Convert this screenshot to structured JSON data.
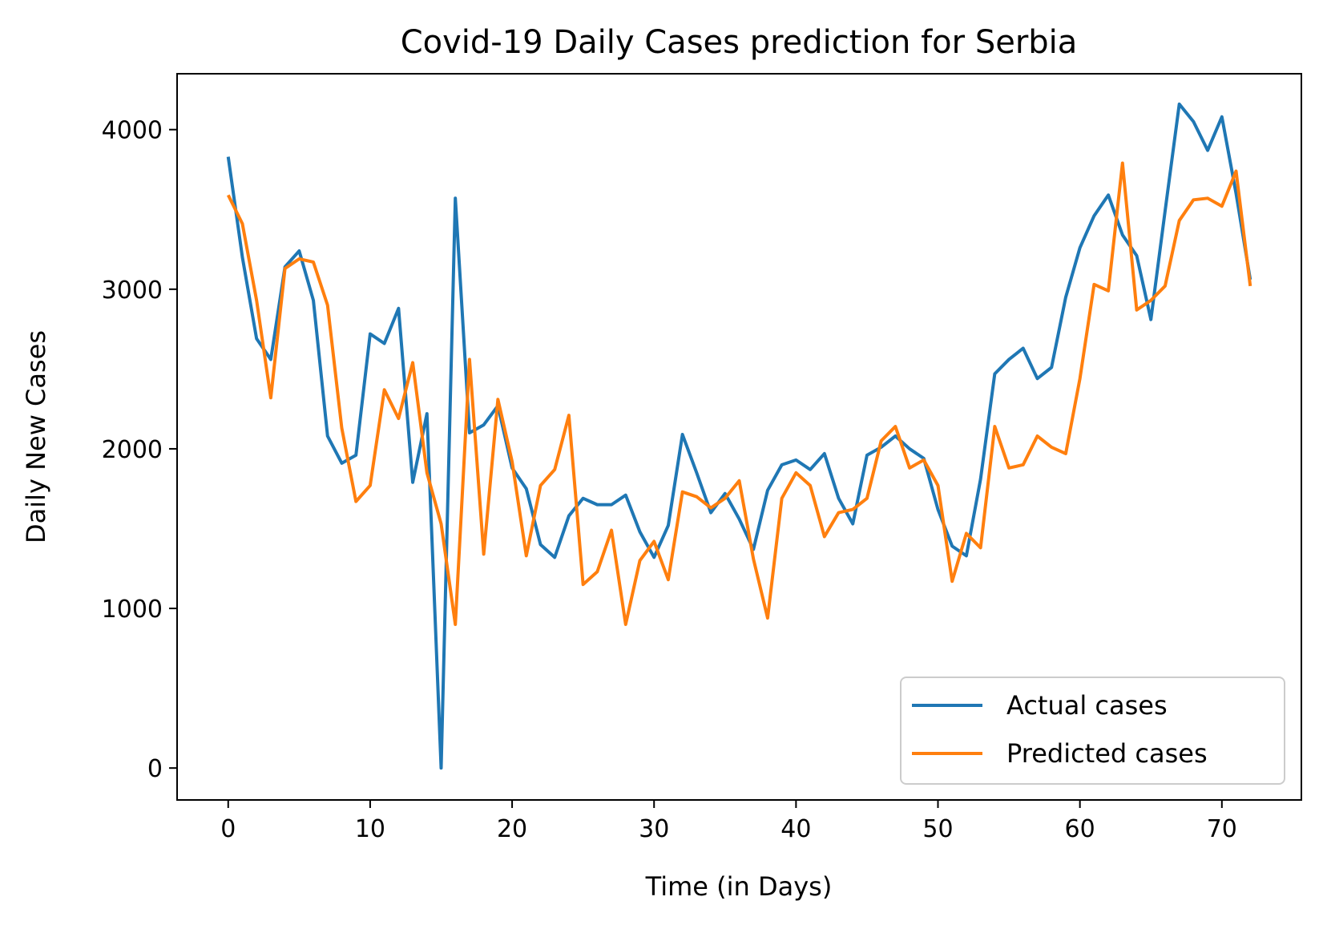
{
  "chart_data": {
    "type": "line",
    "title": "Covid-19 Daily Cases prediction for Serbia",
    "xlabel": "Time (in Days)",
    "ylabel": "Daily New Cases",
    "xlim": [
      -3.6,
      75.6
    ],
    "ylim": [
      -200,
      4350
    ],
    "xticks": [
      0,
      10,
      20,
      30,
      40,
      50,
      60,
      70
    ],
    "yticks": [
      0,
      1000,
      2000,
      3000,
      4000
    ],
    "grid": false,
    "legend_position": "lower right",
    "x": [
      0,
      1,
      2,
      3,
      4,
      5,
      6,
      7,
      8,
      9,
      10,
      11,
      12,
      13,
      14,
      15,
      16,
      17,
      18,
      19,
      20,
      21,
      22,
      23,
      24,
      25,
      26,
      27,
      28,
      29,
      30,
      31,
      32,
      33,
      34,
      35,
      36,
      37,
      38,
      39,
      40,
      41,
      42,
      43,
      44,
      45,
      46,
      47,
      48,
      49,
      50,
      51,
      52,
      53,
      54,
      55,
      56,
      57,
      58,
      59,
      60,
      61,
      62,
      63,
      64,
      65,
      66,
      67,
      68,
      69,
      70,
      71,
      72
    ],
    "series": [
      {
        "name": "Actual cases",
        "color": "#1f77b4",
        "values": [
          3830,
          3200,
          2690,
          2560,
          3140,
          3240,
          2930,
          2080,
          1910,
          1960,
          2720,
          2660,
          2880,
          1790,
          2220,
          0,
          3570,
          2100,
          2150,
          2270,
          1880,
          1750,
          1400,
          1320,
          1580,
          1690,
          1650,
          1650,
          1710,
          1480,
          1320,
          1520,
          2090,
          1850,
          1600,
          1720,
          1560,
          1370,
          1740,
          1900,
          1930,
          1870,
          1970,
          1690,
          1530,
          1960,
          2010,
          2080,
          2000,
          1940,
          1620,
          1390,
          1330,
          1810,
          2470,
          2560,
          2630,
          2440,
          2510,
          2950,
          3260,
          3460,
          3590,
          3340,
          3210,
          2810,
          3490,
          4160,
          4050,
          3870,
          4080,
          3600,
          3060
        ]
      },
      {
        "name": "Predicted cases",
        "color": "#ff7f0e",
        "values": [
          3590,
          3410,
          2930,
          2320,
          3130,
          3190,
          3170,
          2900,
          2130,
          1670,
          1770,
          2370,
          2190,
          2540,
          1850,
          1530,
          900,
          2560,
          1340,
          2310,
          1920,
          1330,
          1770,
          1870,
          2210,
          1150,
          1230,
          1490,
          900,
          1300,
          1420,
          1180,
          1730,
          1700,
          1630,
          1690,
          1800,
          1310,
          940,
          1690,
          1850,
          1770,
          1450,
          1600,
          1620,
          1690,
          2050,
          2140,
          1880,
          1930,
          1770,
          1170,
          1470,
          1380,
          2140,
          1880,
          1900,
          2080,
          2010,
          1970,
          2440,
          3030,
          2990,
          3790,
          2870,
          2930,
          3020,
          3430,
          3560,
          3570,
          3520,
          3740,
          3020
        ]
      }
    ]
  }
}
